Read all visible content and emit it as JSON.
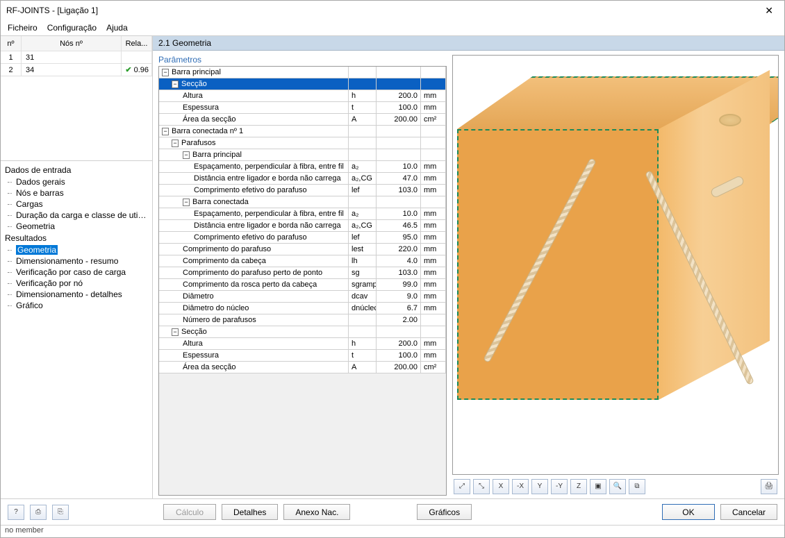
{
  "window": {
    "title": "RF-JOINTS - [Ligação 1]"
  },
  "menu": {
    "file": "Ficheiro",
    "config": "Configuração",
    "help": "Ajuda"
  },
  "nodes_table": {
    "headers": {
      "n": "nº",
      "nos": "Nós nº",
      "rel": "Rela..."
    },
    "rows": [
      {
        "n": "1",
        "nos": "31",
        "rel": ""
      },
      {
        "n": "2",
        "nos": "34",
        "rel": "0.96",
        "check": true
      }
    ]
  },
  "tree": {
    "input_heading": "Dados de entrada",
    "input_items": [
      "Dados gerais",
      "Nós e barras",
      "Cargas",
      "Duração da carga e classe de utilização",
      "Geometria"
    ],
    "results_heading": "Resultados",
    "results_items": [
      "Geometria",
      "Dimensionamento - resumo",
      "Verificação por caso de carga",
      "Verificação por nó",
      "Dimensionamento - detalhes",
      "Gráfico"
    ],
    "selected": "Geometria"
  },
  "section": {
    "title": "2.1 Geometria",
    "params_label": "Parâmetros"
  },
  "grid": [
    {
      "t": "group",
      "lvl": 0,
      "name": "Barra principal"
    },
    {
      "t": "group",
      "lvl": 1,
      "name": "Secção",
      "selected": true
    },
    {
      "t": "row",
      "lvl": 2,
      "name": "Altura",
      "sym": "h",
      "val": "200.0",
      "unit": "mm"
    },
    {
      "t": "row",
      "lvl": 2,
      "name": "Espessura",
      "sym": "t",
      "val": "100.0",
      "unit": "mm"
    },
    {
      "t": "row",
      "lvl": 2,
      "name": "Área da secção",
      "sym": "A",
      "val": "200.00",
      "unit": "cm²"
    },
    {
      "t": "group",
      "lvl": 0,
      "name": "Barra conectada nº 1"
    },
    {
      "t": "group",
      "lvl": 1,
      "name": "Parafusos"
    },
    {
      "t": "group",
      "lvl": 2,
      "name": "Barra principal"
    },
    {
      "t": "row",
      "lvl": 3,
      "name": "Espaçamento, perpendicular à fibra, entre fil",
      "sym": "a₂",
      "val": "10.0",
      "unit": "mm"
    },
    {
      "t": "row",
      "lvl": 3,
      "name": "Distância entre ligador e borda não carrega",
      "sym": "a₂,CG",
      "val": "47.0",
      "unit": "mm"
    },
    {
      "t": "row",
      "lvl": 3,
      "name": "Comprimento efetivo do parafuso",
      "sym": "lef",
      "val": "103.0",
      "unit": "mm"
    },
    {
      "t": "group",
      "lvl": 2,
      "name": "Barra conectada"
    },
    {
      "t": "row",
      "lvl": 3,
      "name": "Espaçamento, perpendicular à fibra, entre fil",
      "sym": "a₂",
      "val": "10.0",
      "unit": "mm"
    },
    {
      "t": "row",
      "lvl": 3,
      "name": "Distância entre ligador e borda não carrega",
      "sym": "a₂,CG",
      "val": "46.5",
      "unit": "mm"
    },
    {
      "t": "row",
      "lvl": 3,
      "name": "Comprimento efetivo do parafuso",
      "sym": "lef",
      "val": "95.0",
      "unit": "mm"
    },
    {
      "t": "row",
      "lvl": 2,
      "name": "Comprimento do parafuso",
      "sym": "lest",
      "val": "220.0",
      "unit": "mm"
    },
    {
      "t": "row",
      "lvl": 2,
      "name": "Comprimento da cabeça",
      "sym": "lh",
      "val": "4.0",
      "unit": "mm"
    },
    {
      "t": "row",
      "lvl": 2,
      "name": "Comprimento do parafuso perto de ponto",
      "sym": "sg",
      "val": "103.0",
      "unit": "mm"
    },
    {
      "t": "row",
      "lvl": 2,
      "name": "Comprimento da rosca perto da cabeça",
      "sym": "sgramp",
      "val": "99.0",
      "unit": "mm"
    },
    {
      "t": "row",
      "lvl": 2,
      "name": "Diâmetro",
      "sym": "dcav",
      "val": "9.0",
      "unit": "mm"
    },
    {
      "t": "row",
      "lvl": 2,
      "name": "Diâmetro do núcleo",
      "sym": "dnúclec",
      "val": "6.7",
      "unit": "mm"
    },
    {
      "t": "row",
      "lvl": 2,
      "name": "Número de parafusos",
      "sym": "",
      "val": "2.00",
      "unit": ""
    },
    {
      "t": "group",
      "lvl": 1,
      "name": "Secção"
    },
    {
      "t": "row",
      "lvl": 2,
      "name": "Altura",
      "sym": "h",
      "val": "200.0",
      "unit": "mm"
    },
    {
      "t": "row",
      "lvl": 2,
      "name": "Espessura",
      "sym": "t",
      "val": "100.0",
      "unit": "mm"
    },
    {
      "t": "row",
      "lvl": 2,
      "name": "Área da secção",
      "sym": "A",
      "val": "200.00",
      "unit": "cm²"
    }
  ],
  "viewer_toolbar": [
    "⤢",
    "⤡",
    "X",
    "-X",
    "Y",
    "-Y",
    "Z",
    "▣",
    "🔍",
    "⧉"
  ],
  "viewer_print": "🖨",
  "bottom": {
    "help": "?",
    "b1": "⎙",
    "b2": "⎘",
    "calc": "Cálculo",
    "details": "Detalhes",
    "annex": "Anexo Nac.",
    "graphics": "Gráficos",
    "ok": "OK",
    "cancel": "Cancelar"
  },
  "status": "no member",
  "colors": {
    "beam_face": "#e9a24a",
    "beam_edge_dash": "#1a8a5a",
    "selection": "#0a60c2",
    "header_bg": "#c8d8e8",
    "link_blue": "#2e6cb5"
  }
}
